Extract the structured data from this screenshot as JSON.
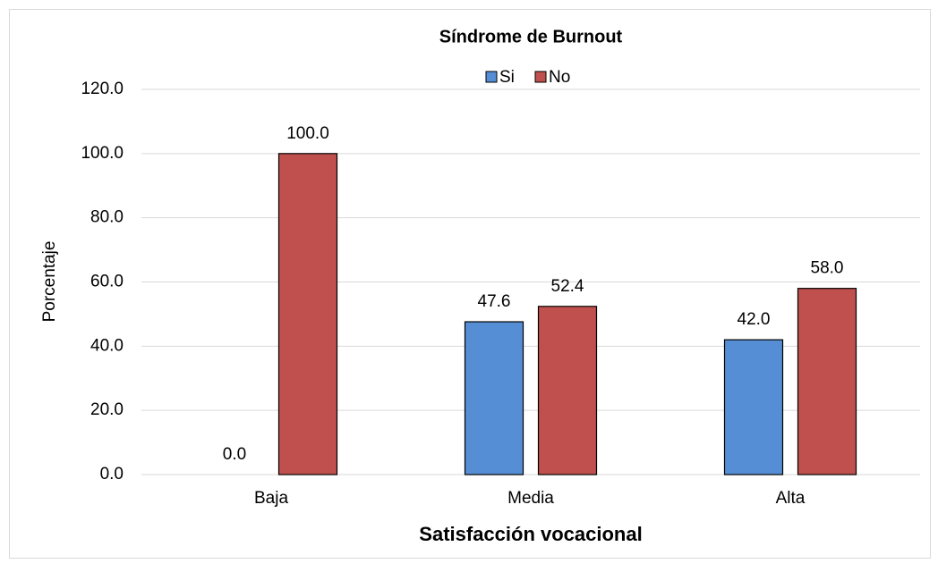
{
  "chart_data": {
    "type": "bar",
    "title": "Síndrome de Burnout",
    "x_label": "Satisfacción vocacional",
    "y_label": "Porcentaje",
    "categories": [
      "Baja",
      "Media",
      "Alta"
    ],
    "series": [
      {
        "name": "Si",
        "color": "#558ed5",
        "values": [
          0,
          47.6,
          42
        ],
        "value_labels": [
          "0.0",
          "47.6",
          "42.0"
        ]
      },
      {
        "name": "No",
        "color": "#c0504d",
        "values": [
          100,
          52.4,
          58
        ],
        "value_labels": [
          "100.0",
          "52.4",
          "58.0"
        ]
      }
    ],
    "ylim": [
      0,
      120
    ],
    "yticks": [
      {
        "value": 0,
        "label": "0.0"
      },
      {
        "value": 20,
        "label": "20.0"
      },
      {
        "value": 40,
        "label": "40.0"
      },
      {
        "value": 60,
        "label": "60.0"
      },
      {
        "value": 80,
        "label": "80.0"
      },
      {
        "value": 100,
        "label": "100.0"
      },
      {
        "value": 120,
        "label": "120.0"
      }
    ],
    "grid": true,
    "legend": "top"
  }
}
